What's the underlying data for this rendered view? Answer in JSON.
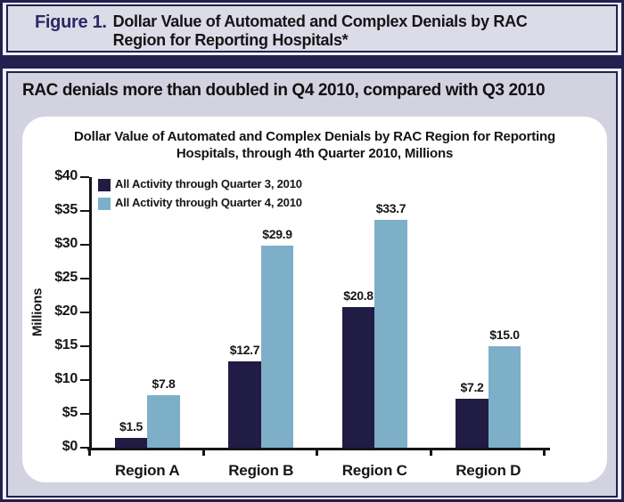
{
  "figure_header": {
    "label": "Figure 1.",
    "title_line1": "Dollar Value of Automated and Complex Denials by RAC",
    "title_line2": "Region for Reporting Hospitals*"
  },
  "headline": "RAC denials more than doubled in Q4 2010, compared with Q3 2010",
  "chart_data": {
    "type": "bar",
    "title": "Dollar Value of Automated and Complex Denials by RAC Region for Reporting Hospitals, through 4th Quarter 2010, Millions",
    "title_lines": [
      "Dollar Value of Automated and Complex Denials by RAC Region for Reporting",
      "Hospitals, through 4th Quarter 2010, Millions"
    ],
    "ylabel": "Millions",
    "xlabel": "",
    "categories": [
      "Region A",
      "Region B",
      "Region C",
      "Region D"
    ],
    "series": [
      {
        "name": "All Activity through Quarter 3, 2010",
        "color": "#201c44",
        "values": [
          1.5,
          12.7,
          20.8,
          7.2
        ],
        "value_labels": [
          "$1.5",
          "$12.7",
          "$20.8",
          "$7.2"
        ]
      },
      {
        "name": "All Activity through Quarter 4, 2010",
        "color": "#7dafc8",
        "values": [
          7.8,
          29.9,
          33.7,
          15.0
        ],
        "value_labels": [
          "$7.8",
          "$29.9",
          "$33.7",
          "$15.0"
        ]
      }
    ],
    "ylim": [
      0,
      40
    ],
    "y_tick_step": 5,
    "y_tick_labels": [
      "$40",
      "$35",
      "$30",
      "$25",
      "$20",
      "$15",
      "$10",
      "$5",
      "$0"
    ],
    "legend_position": "top-left",
    "grid": false
  },
  "colors": {
    "navy": "#23204f",
    "figure_label_navy": "#2b2963",
    "bar_dark": "#201c44",
    "bar_light": "#7dafc8",
    "header_bg": "#dcdbe8",
    "panel_bg": "#d3d2e1",
    "card_bg": "#ffffff",
    "axis_black": "#161616"
  }
}
